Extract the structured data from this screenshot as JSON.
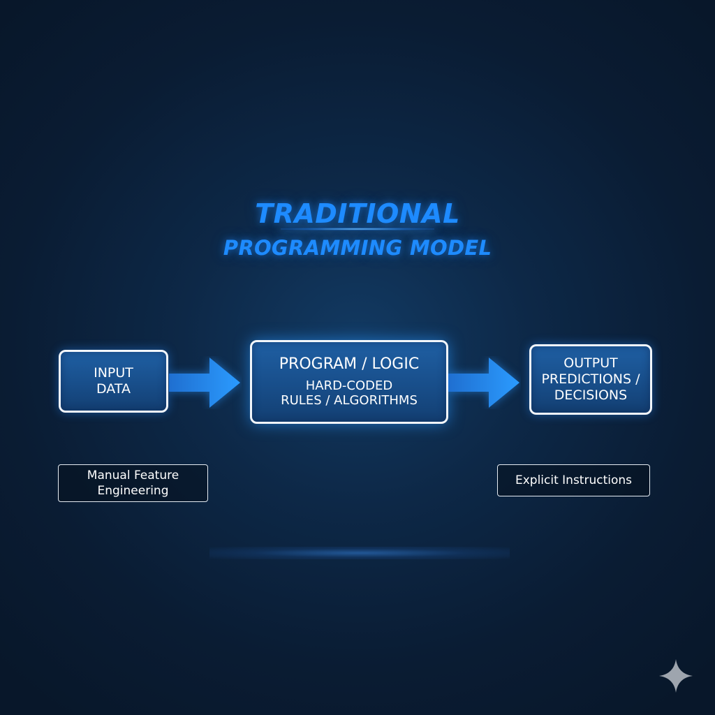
{
  "title": {
    "line1": "TRADITIONAL",
    "line2": "PROGRAMMING MODEL"
  },
  "nodes": {
    "input": {
      "line1": "INPUT",
      "line2": "DATA"
    },
    "program": {
      "title": "PROGRAM / LOGIC",
      "sub_line1": "HARD-CODED",
      "sub_line2": "RULES / ALGORITHMS"
    },
    "output": {
      "line1": "OUTPUT",
      "line2": "PREDICTIONS /",
      "line3": "DECISIONS"
    }
  },
  "notes": {
    "left": {
      "line1": "Manual Feature",
      "line2": "Engineering"
    },
    "right": {
      "line1": "Explicit Instructions"
    }
  },
  "icons": {
    "arrow": "arrow-right-icon",
    "corner": "sparkle-icon"
  },
  "colors": {
    "accent": "#1e8bff",
    "node_fill": "#1b5593",
    "node_border": "#f2f6fb",
    "background": "#0d2847"
  }
}
